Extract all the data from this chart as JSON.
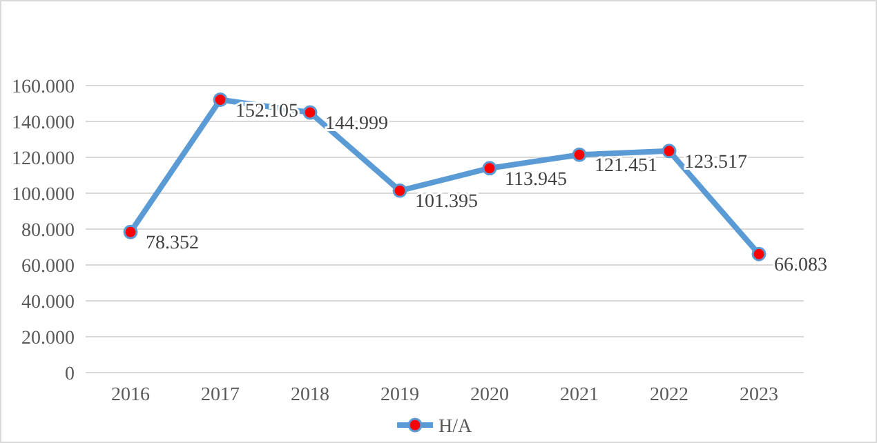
{
  "chart_data": {
    "type": "line",
    "categories": [
      "2016",
      "2017",
      "2018",
      "2019",
      "2020",
      "2021",
      "2022",
      "2023"
    ],
    "series": [
      {
        "name": "H/A",
        "color": "#5b9bd5",
        "values": [
          78352,
          152105,
          144999,
          101395,
          113945,
          121451,
          123517,
          66083
        ],
        "value_labels": [
          "78.352",
          "152.105",
          "144.999",
          "101.395",
          "113.945",
          "121.451",
          "123.517",
          "66.083"
        ]
      }
    ],
    "ylim": [
      0,
      160000
    ],
    "yticks": [
      {
        "value": 0,
        "label": "0"
      },
      {
        "value": 20000,
        "label": "20.000"
      },
      {
        "value": 40000,
        "label": "40.000"
      },
      {
        "value": 60000,
        "label": "60.000"
      },
      {
        "value": 80000,
        "label": "80.000"
      },
      {
        "value": 100000,
        "label": "100.000"
      },
      {
        "value": 120000,
        "label": "120.000"
      },
      {
        "value": 140000,
        "label": "140.000"
      },
      {
        "value": 160000,
        "label": "160.000"
      }
    ],
    "grid": "y",
    "legend": "bottom",
    "marker": "circle",
    "line_style": "solid"
  }
}
